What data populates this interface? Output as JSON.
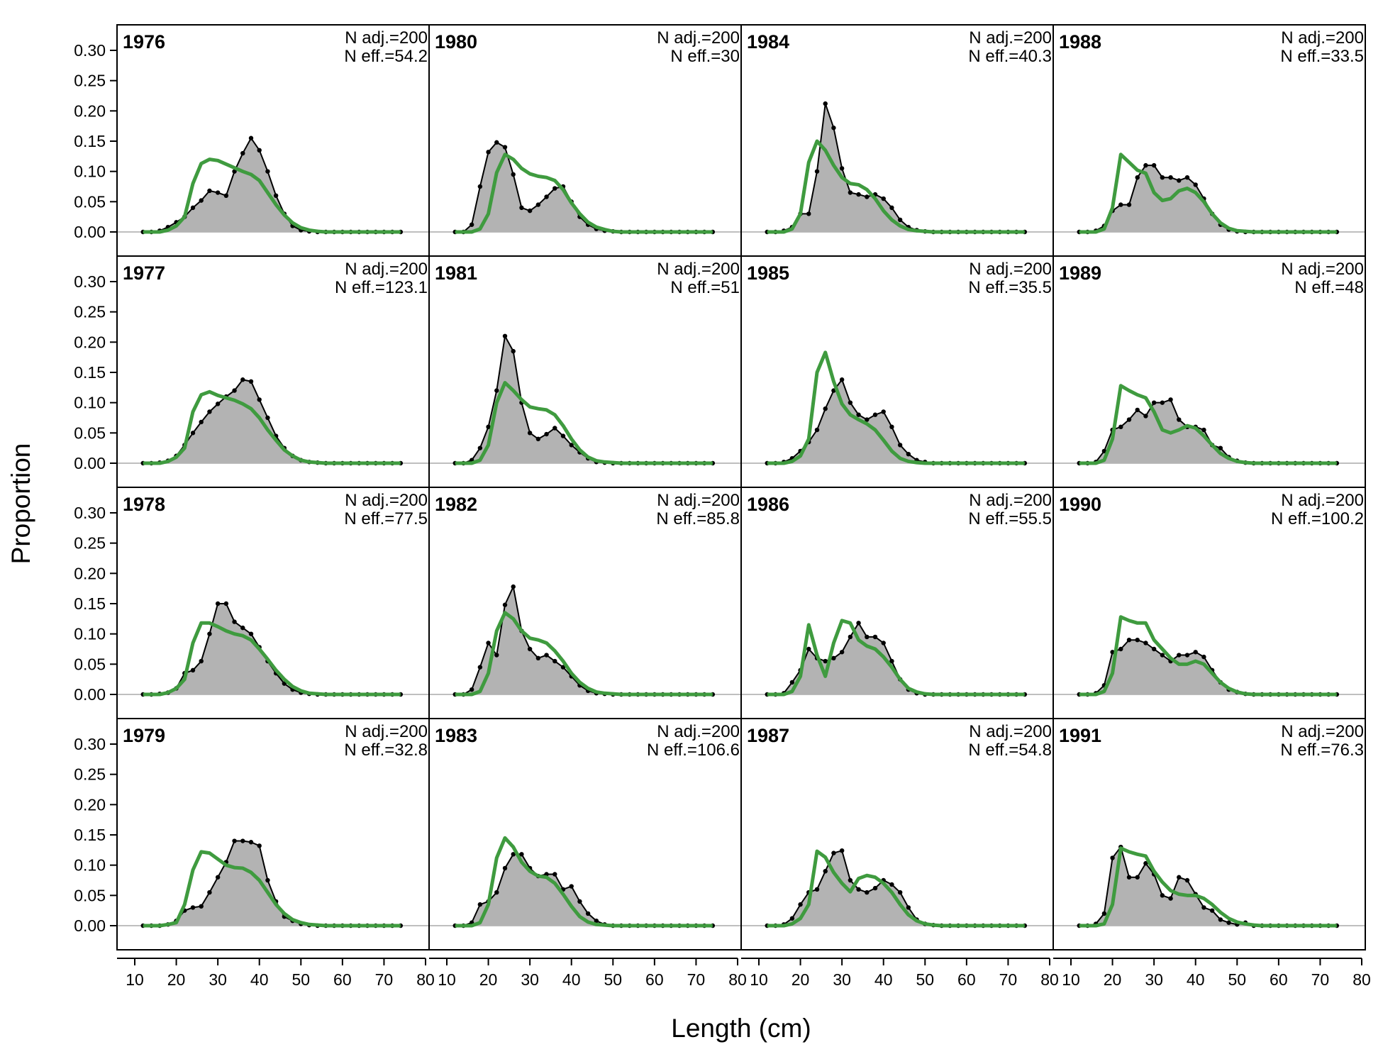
{
  "chart_data": {
    "type": "area",
    "xlabel": "Length (cm)",
    "ylabel": "Proportion",
    "xlim": [
      10,
      80
    ],
    "ylim": [
      0,
      0.3
    ],
    "x_ticks": [
      10,
      20,
      30,
      40,
      50,
      60,
      70,
      80
    ],
    "y_ticks": [
      0.0,
      0.05,
      0.1,
      0.15,
      0.2,
      0.25,
      0.3
    ],
    "y_tick_labels": [
      "0.00",
      "0.05",
      "0.10",
      "0.15",
      "0.20",
      "0.25",
      "0.30"
    ],
    "x": [
      12,
      14,
      16,
      18,
      20,
      22,
      24,
      26,
      28,
      30,
      32,
      34,
      36,
      38,
      40,
      42,
      44,
      46,
      48,
      50,
      52,
      54,
      56,
      58,
      60,
      62,
      64,
      66,
      68,
      70,
      72,
      74
    ],
    "series_style": {
      "observed": {
        "fill": "#b3b3b3",
        "line": "#000000"
      },
      "expected": {
        "line": "#3f9b3f"
      }
    },
    "panels": [
      {
        "year": "1976",
        "n_adj": "N adj.=200",
        "n_eff": "N eff.=54.2",
        "observed": [
          0,
          0,
          0.002,
          0.008,
          0.016,
          0.025,
          0.04,
          0.052,
          0.068,
          0.065,
          0.06,
          0.1,
          0.13,
          0.155,
          0.135,
          0.1,
          0.06,
          0.03,
          0.01,
          0.003,
          0.001,
          0,
          0,
          0,
          0,
          0,
          0,
          0,
          0,
          0,
          0,
          0
        ],
        "expected": [
          0,
          0,
          0,
          0.003,
          0.01,
          0.025,
          0.08,
          0.113,
          0.12,
          0.118,
          0.112,
          0.106,
          0.1,
          0.095,
          0.085,
          0.065,
          0.045,
          0.028,
          0.015,
          0.007,
          0.003,
          0.001,
          0,
          0,
          0,
          0,
          0,
          0,
          0,
          0,
          0,
          0
        ]
      },
      {
        "year": "1977",
        "n_adj": "N adj.=200",
        "n_eff": "N eff.=123.1",
        "observed": [
          0,
          0,
          0.001,
          0.004,
          0.012,
          0.03,
          0.05,
          0.068,
          0.085,
          0.098,
          0.11,
          0.12,
          0.138,
          0.135,
          0.105,
          0.075,
          0.045,
          0.025,
          0.012,
          0.005,
          0.002,
          0.001,
          0,
          0,
          0,
          0,
          0,
          0,
          0,
          0,
          0,
          0
        ],
        "expected": [
          0,
          0,
          0,
          0.003,
          0.01,
          0.025,
          0.085,
          0.113,
          0.118,
          0.112,
          0.108,
          0.104,
          0.098,
          0.09,
          0.075,
          0.055,
          0.038,
          0.022,
          0.012,
          0.005,
          0.002,
          0.001,
          0,
          0,
          0,
          0,
          0,
          0,
          0,
          0,
          0,
          0
        ]
      },
      {
        "year": "1978",
        "n_adj": "N adj.=200",
        "n_eff": "N eff.=77.5",
        "observed": [
          0,
          0,
          0.001,
          0.003,
          0.01,
          0.035,
          0.04,
          0.055,
          0.1,
          0.15,
          0.15,
          0.12,
          0.11,
          0.1,
          0.078,
          0.055,
          0.035,
          0.018,
          0.008,
          0.003,
          0.001,
          0,
          0,
          0,
          0,
          0,
          0,
          0,
          0,
          0,
          0,
          0
        ],
        "expected": [
          0,
          0,
          0,
          0.003,
          0.01,
          0.025,
          0.085,
          0.118,
          0.118,
          0.112,
          0.105,
          0.1,
          0.097,
          0.09,
          0.075,
          0.058,
          0.04,
          0.025,
          0.013,
          0.006,
          0.002,
          0.001,
          0,
          0,
          0,
          0,
          0,
          0,
          0,
          0,
          0,
          0
        ]
      },
      {
        "year": "1979",
        "n_adj": "N adj.=200",
        "n_eff": "N eff.=32.8",
        "observed": [
          0,
          0,
          0,
          0.002,
          0.008,
          0.025,
          0.03,
          0.032,
          0.055,
          0.08,
          0.105,
          0.14,
          0.14,
          0.138,
          0.132,
          0.075,
          0.04,
          0.015,
          0.008,
          0.003,
          0.001,
          0,
          0,
          0,
          0,
          0,
          0,
          0,
          0,
          0,
          0,
          0
        ],
        "expected": [
          0,
          0,
          0,
          0.002,
          0.005,
          0.035,
          0.092,
          0.122,
          0.12,
          0.11,
          0.1,
          0.096,
          0.095,
          0.088,
          0.075,
          0.055,
          0.035,
          0.02,
          0.01,
          0.005,
          0.002,
          0.001,
          0,
          0,
          0,
          0,
          0,
          0,
          0,
          0,
          0,
          0
        ]
      },
      {
        "year": "1980",
        "n_adj": "N adj.=200",
        "n_eff": "N eff.=30",
        "observed": [
          0,
          0,
          0.012,
          0.075,
          0.132,
          0.148,
          0.14,
          0.095,
          0.04,
          0.035,
          0.045,
          0.058,
          0.072,
          0.075,
          0.05,
          0.025,
          0.012,
          0.005,
          0.002,
          0.001,
          0,
          0,
          0,
          0,
          0,
          0,
          0,
          0,
          0,
          0,
          0,
          0
        ],
        "expected": [
          0,
          0,
          0,
          0.005,
          0.03,
          0.098,
          0.128,
          0.12,
          0.105,
          0.096,
          0.092,
          0.09,
          0.085,
          0.07,
          0.048,
          0.03,
          0.016,
          0.008,
          0.004,
          0.001,
          0,
          0,
          0,
          0,
          0,
          0,
          0,
          0,
          0,
          0,
          0,
          0
        ]
      },
      {
        "year": "1981",
        "n_adj": "N adj.=200",
        "n_eff": "N eff.=51",
        "observed": [
          0,
          0,
          0.005,
          0.025,
          0.06,
          0.12,
          0.21,
          0.185,
          0.1,
          0.05,
          0.04,
          0.048,
          0.058,
          0.045,
          0.03,
          0.018,
          0.008,
          0.002,
          0.001,
          0,
          0,
          0,
          0,
          0,
          0,
          0,
          0,
          0,
          0,
          0,
          0,
          0
        ],
        "expected": [
          0,
          0,
          0,
          0.005,
          0.03,
          0.1,
          0.133,
          0.12,
          0.105,
          0.093,
          0.09,
          0.088,
          0.08,
          0.062,
          0.04,
          0.022,
          0.01,
          0.004,
          0.002,
          0.001,
          0,
          0,
          0,
          0,
          0,
          0,
          0,
          0,
          0,
          0,
          0,
          0
        ]
      },
      {
        "year": "1982",
        "n_adj": "N adj.=200",
        "n_eff": "N eff.=85.8",
        "observed": [
          0,
          0,
          0.008,
          0.045,
          0.085,
          0.065,
          0.148,
          0.178,
          0.105,
          0.075,
          0.06,
          0.065,
          0.055,
          0.045,
          0.03,
          0.015,
          0.006,
          0.002,
          0.001,
          0,
          0,
          0,
          0,
          0,
          0,
          0,
          0,
          0,
          0,
          0,
          0,
          0
        ],
        "expected": [
          0,
          0,
          0,
          0.005,
          0.035,
          0.105,
          0.135,
          0.125,
          0.105,
          0.093,
          0.09,
          0.085,
          0.072,
          0.055,
          0.035,
          0.02,
          0.01,
          0.004,
          0.002,
          0.001,
          0,
          0,
          0,
          0,
          0,
          0,
          0,
          0,
          0,
          0,
          0,
          0
        ]
      },
      {
        "year": "1983",
        "n_adj": "N adj.=200",
        "n_eff": "N eff.=106.6",
        "observed": [
          0,
          0,
          0.005,
          0.035,
          0.04,
          0.055,
          0.095,
          0.118,
          0.118,
          0.095,
          0.082,
          0.085,
          0.085,
          0.06,
          0.065,
          0.04,
          0.02,
          0.008,
          0.002,
          0,
          0,
          0,
          0,
          0,
          0,
          0,
          0,
          0,
          0,
          0,
          0,
          0
        ],
        "expected": [
          0,
          0,
          0,
          0.005,
          0.035,
          0.112,
          0.145,
          0.13,
          0.105,
          0.09,
          0.082,
          0.08,
          0.07,
          0.052,
          0.032,
          0.015,
          0.006,
          0.002,
          0.001,
          0,
          0,
          0,
          0,
          0,
          0,
          0,
          0,
          0,
          0,
          0,
          0,
          0
        ]
      },
      {
        "year": "1984",
        "n_adj": "N adj.=200",
        "n_eff": "N eff.=40.3",
        "observed": [
          0,
          0,
          0.002,
          0.008,
          0.03,
          0.03,
          0.1,
          0.212,
          0.172,
          0.105,
          0.065,
          0.062,
          0.058,
          0.062,
          0.055,
          0.04,
          0.02,
          0.008,
          0.003,
          0.001,
          0,
          0,
          0,
          0,
          0,
          0,
          0,
          0,
          0,
          0,
          0,
          0
        ],
        "expected": [
          0,
          0,
          0,
          0.005,
          0.03,
          0.115,
          0.15,
          0.135,
          0.11,
          0.09,
          0.08,
          0.078,
          0.07,
          0.055,
          0.035,
          0.02,
          0.01,
          0.004,
          0.002,
          0.001,
          0,
          0,
          0,
          0,
          0,
          0,
          0,
          0,
          0,
          0,
          0,
          0
        ]
      },
      {
        "year": "1985",
        "n_adj": "N adj.=200",
        "n_eff": "N eff.=35.5",
        "observed": [
          0,
          0,
          0.002,
          0.008,
          0.02,
          0.035,
          0.055,
          0.09,
          0.12,
          0.138,
          0.1,
          0.08,
          0.072,
          0.08,
          0.085,
          0.06,
          0.03,
          0.015,
          0.005,
          0.002,
          0,
          0,
          0,
          0,
          0,
          0,
          0,
          0,
          0,
          0,
          0,
          0
        ],
        "expected": [
          0,
          0,
          0,
          0.003,
          0.012,
          0.04,
          0.15,
          0.183,
          0.135,
          0.098,
          0.08,
          0.072,
          0.065,
          0.055,
          0.038,
          0.02,
          0.008,
          0.003,
          0.001,
          0,
          0,
          0,
          0,
          0,
          0,
          0,
          0,
          0,
          0,
          0,
          0,
          0
        ]
      },
      {
        "year": "1986",
        "n_adj": "N adj.=200",
        "n_eff": "N eff.=55.5",
        "observed": [
          0,
          0,
          0.002,
          0.02,
          0.04,
          0.075,
          0.06,
          0.055,
          0.06,
          0.07,
          0.095,
          0.118,
          0.095,
          0.095,
          0.085,
          0.055,
          0.025,
          0.008,
          0.002,
          0,
          0,
          0,
          0,
          0,
          0,
          0,
          0,
          0,
          0,
          0,
          0,
          0
        ],
        "expected": [
          0,
          0,
          0,
          0.005,
          0.03,
          0.115,
          0.065,
          0.03,
          0.085,
          0.122,
          0.118,
          0.09,
          0.08,
          0.075,
          0.062,
          0.045,
          0.025,
          0.01,
          0.004,
          0.001,
          0,
          0,
          0,
          0,
          0,
          0,
          0,
          0,
          0,
          0,
          0,
          0
        ]
      },
      {
        "year": "1987",
        "n_adj": "N adj.=200",
        "n_eff": "N eff.=54.8",
        "observed": [
          0,
          0,
          0.002,
          0.012,
          0.035,
          0.055,
          0.06,
          0.09,
          0.12,
          0.124,
          0.075,
          0.06,
          0.055,
          0.062,
          0.075,
          0.068,
          0.055,
          0.03,
          0.01,
          0.003,
          0.001,
          0,
          0,
          0,
          0,
          0,
          0,
          0,
          0,
          0,
          0,
          0
        ],
        "expected": [
          0,
          0,
          0,
          0.003,
          0.012,
          0.035,
          0.123,
          0.113,
          0.088,
          0.07,
          0.056,
          0.078,
          0.083,
          0.08,
          0.07,
          0.055,
          0.035,
          0.018,
          0.008,
          0.003,
          0.001,
          0,
          0,
          0,
          0,
          0,
          0,
          0,
          0,
          0,
          0,
          0
        ]
      },
      {
        "year": "1988",
        "n_adj": "N adj.=200",
        "n_eff": "N eff.=33.5",
        "observed": [
          0,
          0,
          0.002,
          0.01,
          0.035,
          0.045,
          0.045,
          0.09,
          0.11,
          0.11,
          0.09,
          0.09,
          0.085,
          0.09,
          0.078,
          0.055,
          0.03,
          0.012,
          0.004,
          0.001,
          0,
          0,
          0,
          0,
          0,
          0,
          0,
          0,
          0,
          0,
          0,
          0
        ],
        "expected": [
          0,
          0,
          0,
          0.005,
          0.04,
          0.128,
          0.115,
          0.102,
          0.097,
          0.065,
          0.052,
          0.055,
          0.068,
          0.072,
          0.065,
          0.05,
          0.03,
          0.015,
          0.006,
          0.002,
          0.001,
          0,
          0,
          0,
          0,
          0,
          0,
          0,
          0,
          0,
          0,
          0
        ]
      },
      {
        "year": "1989",
        "n_adj": "N adj.=200",
        "n_eff": "N eff.=48",
        "observed": [
          0,
          0,
          0.002,
          0.02,
          0.055,
          0.06,
          0.072,
          0.088,
          0.078,
          0.1,
          0.1,
          0.105,
          0.072,
          0.06,
          0.06,
          0.055,
          0.03,
          0.025,
          0.01,
          0.004,
          0.001,
          0,
          0,
          0,
          0,
          0,
          0,
          0,
          0,
          0,
          0,
          0
        ],
        "expected": [
          0,
          0,
          0,
          0.005,
          0.04,
          0.128,
          0.12,
          0.113,
          0.108,
          0.085,
          0.055,
          0.05,
          0.055,
          0.062,
          0.058,
          0.045,
          0.03,
          0.016,
          0.008,
          0.003,
          0.001,
          0,
          0,
          0,
          0,
          0,
          0,
          0,
          0,
          0,
          0,
          0
        ]
      },
      {
        "year": "1990",
        "n_adj": "N adj.=200",
        "n_eff": "N eff.=100.2",
        "observed": [
          0,
          0,
          0.002,
          0.015,
          0.07,
          0.075,
          0.09,
          0.09,
          0.085,
          0.075,
          0.065,
          0.055,
          0.065,
          0.065,
          0.07,
          0.062,
          0.04,
          0.02,
          0.008,
          0.004,
          0.001,
          0,
          0,
          0,
          0,
          0,
          0,
          0,
          0,
          0,
          0,
          0
        ],
        "expected": [
          0,
          0,
          0,
          0.005,
          0.035,
          0.128,
          0.122,
          0.118,
          0.118,
          0.09,
          0.075,
          0.06,
          0.05,
          0.05,
          0.055,
          0.05,
          0.035,
          0.02,
          0.01,
          0.004,
          0.001,
          0,
          0,
          0,
          0,
          0,
          0,
          0,
          0,
          0,
          0,
          0
        ]
      },
      {
        "year": "1991",
        "n_adj": "N adj.=200",
        "n_eff": "N eff.=76.3",
        "observed": [
          0,
          0,
          0.003,
          0.02,
          0.112,
          0.13,
          0.08,
          0.08,
          0.103,
          0.085,
          0.05,
          0.045,
          0.08,
          0.075,
          0.052,
          0.03,
          0.025,
          0.01,
          0.005,
          0.002,
          0.005,
          0,
          0,
          0,
          0,
          0,
          0,
          0,
          0,
          0,
          0,
          0
        ],
        "expected": [
          0,
          0,
          0,
          0.003,
          0.035,
          0.128,
          0.122,
          0.118,
          0.115,
          0.09,
          0.072,
          0.058,
          0.052,
          0.05,
          0.05,
          0.045,
          0.035,
          0.022,
          0.012,
          0.006,
          0.003,
          0.001,
          0,
          0,
          0,
          0,
          0,
          0,
          0,
          0,
          0,
          0
        ]
      }
    ]
  }
}
